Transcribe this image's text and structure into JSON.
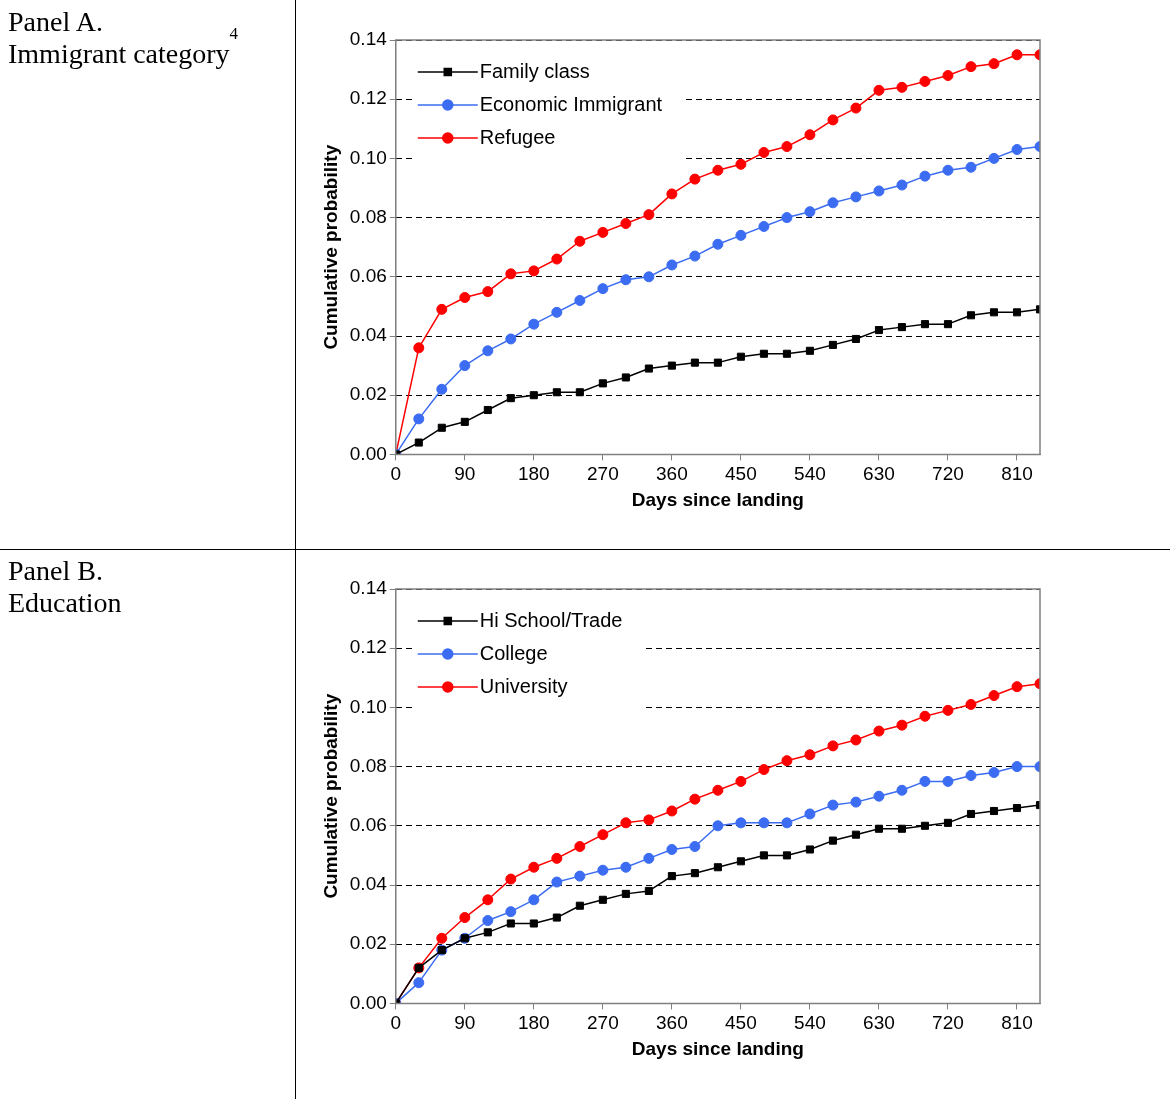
{
  "chart_data": [
    {
      "type": "other",
      "title": "Panel A.\nImmigrant category$^{4}$"
    },
    {
      "type": "line",
      "xlabel": "Days since landing",
      "ylabel": "Cumulative probability",
      "x": [
        0,
        30,
        60,
        90,
        120,
        150,
        180,
        210,
        240,
        270,
        300,
        330,
        360,
        390,
        420,
        450,
        480,
        510,
        540,
        570,
        600,
        630,
        660,
        690,
        720,
        750,
        780,
        810,
        840
      ],
      "series": [
        {
          "name": "Family class",
          "color": "#000000",
          "marker": "square",
          "values": [
            0,
            0.004,
            0.009,
            0.011,
            0.015,
            0.019,
            0.02,
            0.021,
            0.021,
            0.024,
            0.026,
            0.029,
            0.03,
            0.031,
            0.031,
            0.033,
            0.034,
            0.034,
            0.035,
            0.037,
            0.039,
            0.042,
            0.043,
            0.044,
            0.044,
            0.047,
            0.048,
            0.048,
            0.049
          ]
        },
        {
          "name": "Economic Immigrant",
          "color": "#3b6cf2",
          "marker": "circle",
          "values": [
            0,
            0.012,
            0.022,
            0.03,
            0.035,
            0.039,
            0.044,
            0.048,
            0.052,
            0.056,
            0.059,
            0.06,
            0.064,
            0.067,
            0.071,
            0.074,
            0.077,
            0.08,
            0.082,
            0.085,
            0.087,
            0.089,
            0.091,
            0.094,
            0.096,
            0.097,
            0.1,
            0.103,
            0.104
          ]
        },
        {
          "name": "Refugee",
          "color": "#ff0000",
          "marker": "circle",
          "values": [
            0,
            0.036,
            0.049,
            0.053,
            0.055,
            0.061,
            0.062,
            0.066,
            0.072,
            0.075,
            0.078,
            0.081,
            0.088,
            0.093,
            0.096,
            0.098,
            0.102,
            0.104,
            0.108,
            0.113,
            0.117,
            0.123,
            0.124,
            0.126,
            0.128,
            0.131,
            0.132,
            0.135,
            0.135
          ]
        }
      ],
      "xlim": [
        0,
        840
      ],
      "xticks": [
        0,
        90,
        180,
        270,
        360,
        450,
        540,
        630,
        720,
        810
      ],
      "ylim": [
        0,
        0.14
      ],
      "yticks": [
        {
          "value": 0,
          "label": "0.00"
        },
        {
          "value": 0.02,
          "label": "0.02"
        },
        {
          "value": 0.04,
          "label": "0.04"
        },
        {
          "value": 0.06,
          "label": "0.06"
        },
        {
          "value": 0.08,
          "label": "0.08"
        },
        {
          "value": 0.1,
          "label": "0.10"
        },
        {
          "value": 0.12,
          "label": "0.12"
        },
        {
          "value": 0.14,
          "label": "0.14"
        }
      ],
      "grid": "y",
      "legend": "top left",
      "line_style": "solid"
    },
    {
      "type": "other",
      "title": "Panel B.\nEducation"
    },
    {
      "type": "line",
      "xlabel": "Days since landing",
      "ylabel": "Cumulative probability",
      "x": [
        0,
        30,
        60,
        90,
        120,
        150,
        180,
        210,
        240,
        270,
        300,
        330,
        360,
        390,
        420,
        450,
        480,
        510,
        540,
        570,
        600,
        630,
        660,
        690,
        720,
        750,
        780,
        810,
        840
      ],
      "series": [
        {
          "name": "Hi School/Trade",
          "color": "#000000",
          "marker": "square",
          "values": [
            0,
            0.012,
            0.018,
            0.022,
            0.024,
            0.027,
            0.027,
            0.029,
            0.033,
            0.035,
            0.037,
            0.038,
            0.043,
            0.044,
            0.046,
            0.048,
            0.05,
            0.05,
            0.052,
            0.055,
            0.057,
            0.059,
            0.059,
            0.06,
            0.061,
            0.064,
            0.065,
            0.066,
            0.067
          ]
        },
        {
          "name": "College",
          "color": "#3b6cf2",
          "marker": "circle",
          "values": [
            0,
            0.007,
            0.018,
            0.022,
            0.028,
            0.031,
            0.035,
            0.041,
            0.043,
            0.045,
            0.046,
            0.049,
            0.052,
            0.053,
            0.06,
            0.061,
            0.061,
            0.061,
            0.064,
            0.067,
            0.068,
            0.07,
            0.072,
            0.075,
            0.075,
            0.077,
            0.078,
            0.08,
            0.08
          ]
        },
        {
          "name": "University",
          "color": "#ff0000",
          "marker": "circle",
          "values": [
            0,
            0.012,
            0.022,
            0.029,
            0.035,
            0.042,
            0.046,
            0.049,
            0.053,
            0.057,
            0.061,
            0.062,
            0.065,
            0.069,
            0.072,
            0.075,
            0.079,
            0.082,
            0.084,
            0.087,
            0.089,
            0.092,
            0.094,
            0.097,
            0.099,
            0.101,
            0.104,
            0.107,
            0.108
          ]
        }
      ],
      "xlim": [
        0,
        840
      ],
      "xticks": [
        0,
        90,
        180,
        270,
        360,
        450,
        540,
        630,
        720,
        810
      ],
      "ylim": [
        0,
        0.14
      ],
      "yticks": [
        {
          "value": 0,
          "label": "0.00"
        },
        {
          "value": 0.02,
          "label": "0.02"
        },
        {
          "value": 0.04,
          "label": "0.04"
        },
        {
          "value": 0.06,
          "label": "0.06"
        },
        {
          "value": 0.08,
          "label": "0.08"
        },
        {
          "value": 0.1,
          "label": "0.10"
        },
        {
          "value": 0.12,
          "label": "0.12"
        },
        {
          "value": 0.14,
          "label": "0.14"
        }
      ],
      "grid": "y",
      "legend": "top left",
      "line_style": "solid"
    }
  ]
}
